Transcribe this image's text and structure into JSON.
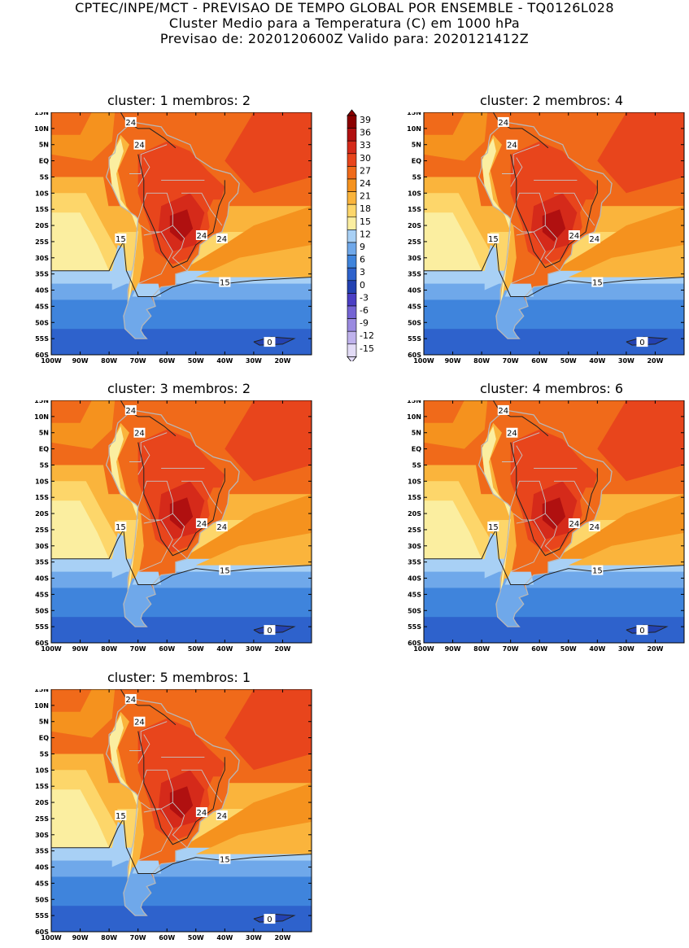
{
  "header": {
    "line1": "CPTEC/INPE/MCT - PREVISAO DE TEMPO GLOBAL POR ENSEMBLE - TQ0126L028",
    "line2": "Cluster Medio para a Temperatura (C) em 1000 hPa",
    "line3": "Previsao de: 2020120600Z   Valido para: 2020121412Z"
  },
  "panels": [
    {
      "title": "cluster: 1   membros: 2"
    },
    {
      "title": "cluster: 2   membros: 4"
    },
    {
      "title": "cluster: 3   membros: 2"
    },
    {
      "title": "cluster: 4   membros: 6"
    },
    {
      "title": "cluster: 5   membros: 1"
    }
  ],
  "axes": {
    "lat_labels": [
      "15N",
      "10N",
      "5N",
      "EQ",
      "5S",
      "10S",
      "15S",
      "20S",
      "25S",
      "30S",
      "35S",
      "40S",
      "45S",
      "50S",
      "55S",
      "60S"
    ],
    "lon_labels": [
      "100W",
      "90W",
      "80W",
      "70W",
      "60W",
      "50W",
      "40W",
      "30W",
      "20W"
    ]
  },
  "contour_labels": {
    "c24": "24",
    "c15": "15",
    "c0": "0"
  },
  "colorbar": {
    "levels": [
      "39",
      "36",
      "33",
      "30",
      "27",
      "24",
      "21",
      "18",
      "15",
      "12",
      "9",
      "6",
      "3",
      "0",
      "-3",
      "-6",
      "-9",
      "-12",
      "-15"
    ],
    "colors": [
      "#8b0000",
      "#b01010",
      "#d52a1a",
      "#e8451c",
      "#f06a1a",
      "#f5921e",
      "#fab43c",
      "#fdd66a",
      "#fbeea0",
      "#a8d0f5",
      "#6fa8ea",
      "#3f84dc",
      "#2e62cc",
      "#2342b2",
      "#4b3fc4",
      "#7464d4",
      "#9a8ae0",
      "#bfb2ec",
      "#e2dbf6"
    ]
  }
}
